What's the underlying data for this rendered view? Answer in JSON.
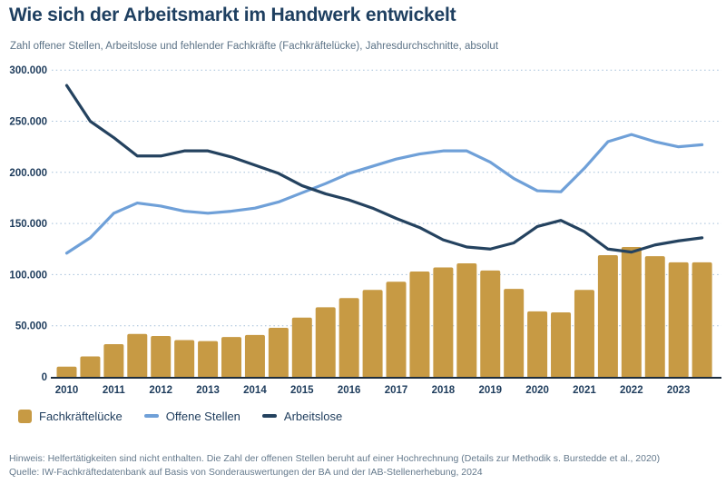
{
  "header": {
    "title": "Wie sich der Arbeitsmarkt im Handwerk entwickelt",
    "subtitle": "Zahl offener Stellen, Arbeitslose und fehlender Fachkräfte (Fachkräftelücke), Jahresdurchschnitte, absolut"
  },
  "legend": {
    "items": [
      {
        "label": "Fachkräftelücke",
        "type": "square",
        "color": "#c79a44"
      },
      {
        "label": "Offene Stellen",
        "type": "line",
        "color": "#6fa0d8"
      },
      {
        "label": "Arbeitslose",
        "type": "line",
        "color": "#24425f"
      }
    ]
  },
  "footer": {
    "note": "Hinweis: Helfertätigkeiten sind nicht enthalten. Die Zahl der offenen Stellen beruht auf einer Hochrechnung (Details zur Methodik s. Burstedde et al., 2020)",
    "source": "Quelle: IW-Fachkräftedatenbank auf Basis von Sonderauswertungen der BA und der IAB-Stellenerhebung, 2024"
  },
  "colors": {
    "background": "#ffffff",
    "title": "#1e3f60",
    "subtitle": "#5b7286",
    "axis_label": "#1e3c5c",
    "grid": "#a3bfd9",
    "axis": "#1d2d3e",
    "footer": "#64798c",
    "bar": "#c79a44",
    "line_open_positions": "#6fa0d8",
    "line_unemployed": "#24425f"
  },
  "chart_data": {
    "type": "bar+line",
    "x_frequency": "half-yearly",
    "categories": [
      "2010-H1",
      "2010-H2",
      "2011-H1",
      "2011-H2",
      "2012-H1",
      "2012-H2",
      "2013-H1",
      "2013-H2",
      "2014-H1",
      "2014-H2",
      "2015-H1",
      "2015-H2",
      "2016-H1",
      "2016-H2",
      "2017-H1",
      "2017-H2",
      "2018-H1",
      "2018-H2",
      "2019-H1",
      "2019-H2",
      "2020-H1",
      "2020-H2",
      "2021-H1",
      "2021-H2",
      "2022-H1",
      "2022-H2",
      "2023-H1",
      "2023-H2"
    ],
    "series": [
      {
        "name": "Fachkräftelücke",
        "type": "bar",
        "color": "#c79a44",
        "values": [
          10000,
          20000,
          32000,
          42000,
          40000,
          36000,
          35000,
          39000,
          41000,
          48000,
          58000,
          68000,
          77000,
          85000,
          93000,
          103000,
          107000,
          111000,
          104000,
          86000,
          64000,
          63000,
          85000,
          119000,
          127000,
          118000,
          112000,
          112000
        ]
      },
      {
        "name": "Offene Stellen",
        "type": "line",
        "color": "#6fa0d8",
        "values": [
          121000,
          136000,
          160000,
          170000,
          167000,
          162000,
          160000,
          162000,
          165000,
          171000,
          180000,
          189000,
          199000,
          206000,
          213000,
          218000,
          221000,
          221000,
          210000,
          194000,
          182000,
          181000,
          204000,
          230000,
          237000,
          230000,
          225000,
          227000
        ]
      },
      {
        "name": "Arbeitslose",
        "type": "line",
        "color": "#24425f",
        "values": [
          285000,
          250000,
          234000,
          216000,
          216000,
          221000,
          221000,
          215000,
          207000,
          199000,
          187000,
          179000,
          173000,
          165000,
          155000,
          146000,
          134000,
          127000,
          125000,
          131000,
          147000,
          153000,
          142000,
          125000,
          122000,
          129000,
          133000,
          136000
        ]
      }
    ],
    "x_tick_labels": [
      "2010",
      "2011",
      "2012",
      "2013",
      "2014",
      "2015",
      "2016",
      "2017",
      "2018",
      "2019",
      "2020",
      "2021",
      "2022",
      "2023"
    ],
    "y_ticks": [
      0,
      50000,
      100000,
      150000,
      200000,
      250000,
      300000
    ],
    "y_tick_labels": [
      "0",
      "50.000",
      "100.000",
      "150.000",
      "200.000",
      "250.000",
      "300.000"
    ],
    "ylim": [
      0,
      300000
    ],
    "grid": "dotted-horizontal",
    "legend_position": "bottom"
  }
}
